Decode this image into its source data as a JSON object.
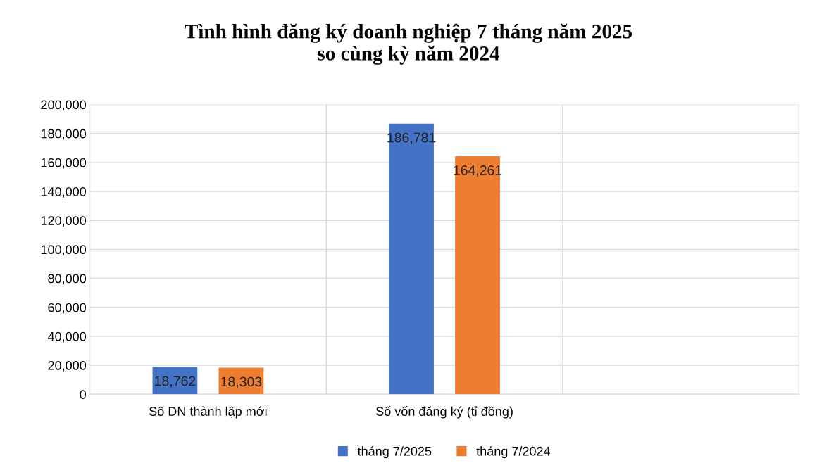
{
  "chart_data": {
    "type": "bar",
    "title": "Tình hình đăng ký doanh nghiệp 7 tháng năm 2025\nso cùng kỳ năm 2024",
    "categories": [
      "Số DN thành lập mới",
      "Số vốn đăng ký (tỉ đồng)",
      null
    ],
    "series": [
      {
        "name": "tháng 7/2025",
        "color": "#4472c4",
        "values": [
          18762,
          186781,
          null
        ],
        "value_labels": [
          "18,762",
          "186,781",
          null
        ]
      },
      {
        "name": "tháng 7/2024",
        "color": "#ed7d31",
        "values": [
          18303,
          164261,
          null
        ],
        "value_labels": [
          "18,303",
          "164,261",
          null
        ]
      }
    ],
    "ylim": [
      0,
      200000
    ],
    "yticks": [
      {
        "value": 0,
        "label": "0"
      },
      {
        "value": 20000,
        "label": "20,000"
      },
      {
        "value": 40000,
        "label": "40,000"
      },
      {
        "value": 60000,
        "label": "60,000"
      },
      {
        "value": 80000,
        "label": "80,000"
      },
      {
        "value": 100000,
        "label": "100,000"
      },
      {
        "value": 120000,
        "label": "120,000"
      },
      {
        "value": 140000,
        "label": "140,000"
      },
      {
        "value": 160000,
        "label": "160,000"
      },
      {
        "value": 180000,
        "label": "180,000"
      },
      {
        "value": 200000,
        "label": "200,000"
      }
    ],
    "grid": true,
    "legend": "bottom"
  }
}
